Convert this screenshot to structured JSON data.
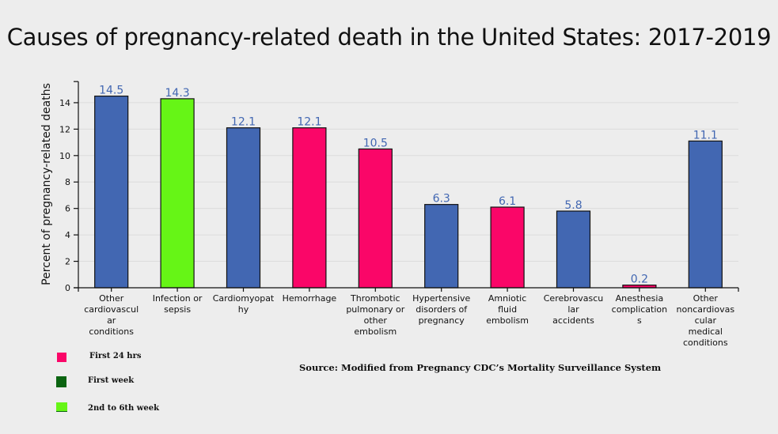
{
  "chart_data": {
    "type": "bar",
    "title": "Causes of pregnancy-related death in the United States: 2017-2019",
    "xlabel": "",
    "ylabel": "Percent of pregnancy-related deaths",
    "ylim": [
      0,
      15.6
    ],
    "yticks": [
      0,
      2,
      4,
      6,
      8,
      10,
      12,
      14
    ],
    "grid": true,
    "categories": [
      "Other cardiovascular conditions",
      "Infection or sepsis",
      "Cardiomyopathy",
      "Hemorrhage",
      "Thrombotic pulmonary or other embolism",
      "Hypertensive disorders of pregnancy",
      "Amniotic fluid embolism",
      "Cerebrovascular accidents",
      "Anesthesia complications",
      "Other noncardiovascular medical conditions"
    ],
    "category_label_lines": [
      [
        "Other",
        "cardiovascul",
        "ar",
        "conditions"
      ],
      [
        "Infection or",
        "sepsis"
      ],
      [
        "Cardiomyopat",
        "hy"
      ],
      [
        "Hemorrhage"
      ],
      [
        "Thrombotic",
        "pulmonary or",
        "other",
        "embolism"
      ],
      [
        "Hypertensive",
        "disorders of",
        "pregnancy"
      ],
      [
        "Amniotic",
        "fluid",
        "embolism"
      ],
      [
        "Cerebrovascu",
        "lar",
        "accidents"
      ],
      [
        "Anesthesia",
        "complication",
        "s"
      ],
      [
        "Other",
        "noncardiovas",
        "cular",
        "medical",
        "conditions"
      ]
    ],
    "values": [
      14.5,
      14.3,
      12.1,
      12.1,
      10.5,
      6.3,
      6.1,
      5.8,
      0.2,
      11.1
    ],
    "data_labels": [
      "14.5",
      "14.3",
      "12.1",
      "12.1",
      "10.5",
      "6.3",
      "6.1",
      "5.8",
      "0.2",
      "11.1"
    ],
    "bar_colors": [
      "#4267b2",
      "#66f516",
      "#4267b2",
      "#fa0668",
      "#fa0668",
      "#4267b2",
      "#fa0668",
      "#4267b2",
      "#fa0668",
      "#4267b2"
    ],
    "data_label_color": "#4267b2",
    "legend": {
      "placement": "bottom-left",
      "entries": [
        {
          "label": "First 24 hrs",
          "color": "#fa0668"
        },
        {
          "label": "First week",
          "color": "#0b6411"
        },
        {
          "label": "2nd to 6th week",
          "color": "#66f516"
        }
      ]
    },
    "annotations": [
      "Source: Modified from Pregnancy CDC’s Mortality Surveillance System"
    ]
  }
}
